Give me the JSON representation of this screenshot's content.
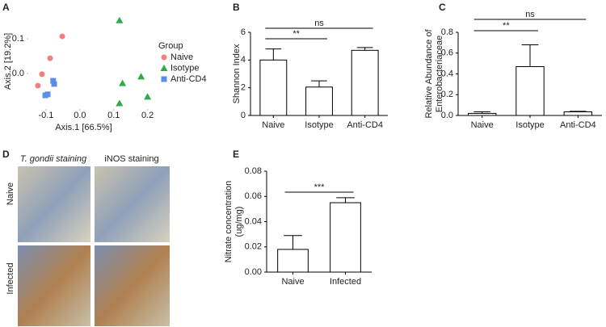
{
  "chart_data": [
    {
      "type": "scatter",
      "panel_label": "A",
      "xlabel": "Axis.1   [66.5%]",
      "ylabel": "Axis.2   [19.2%]",
      "legend_title": "Group",
      "xlim": [
        -0.15,
        0.22
      ],
      "ylim": [
        -0.1,
        0.17
      ],
      "xticks": [
        -0.1,
        {
          "value": 0,
          "label": "0.0"
        },
        0.1,
        0.2
      ],
      "yticks": [
        {
          "value": 0,
          "label": "0.0"
        },
        0.1
      ],
      "series": [
        {
          "name": "Naive",
          "color": "#f08080",
          "marker": "circle",
          "x": [
            -0.052,
            -0.088,
            -0.112,
            -0.124
          ],
          "y": [
            0.107,
            0.044,
            -0.002,
            -0.035
          ]
        },
        {
          "name": "Isotype",
          "color": "#2eaa4a",
          "marker": "triangle",
          "x": [
            0.117,
            0.126,
            0.181,
            0.2,
            0.117
          ],
          "y": [
            0.153,
            -0.028,
            -0.009,
            -0.067,
            -0.086
          ]
        },
        {
          "name": "Anti-CD4",
          "color": "#5b8ee6",
          "marker": "square",
          "x": [
            -0.079,
            -0.076,
            -0.102,
            -0.095
          ],
          "y": [
            -0.021,
            -0.03,
            -0.063,
            -0.06
          ]
        }
      ]
    },
    {
      "type": "bar",
      "panel_label": "B",
      "ylabel": [
        "Shannon Index"
      ],
      "categories": [
        "Naive",
        "Isotype",
        "Anti-CD4"
      ],
      "values": [
        4.0,
        2.05,
        4.7
      ],
      "errors": [
        0.8,
        0.45,
        0.2
      ],
      "ylim": [
        0,
        6
      ],
      "yticks": [
        0,
        2,
        4,
        6
      ],
      "significance": [
        {
          "label": "**",
          "between": [
            "Naive",
            "Isotype"
          ]
        },
        {
          "label": "ns",
          "between": [
            "Naive",
            "Anti-CD4"
          ]
        }
      ]
    },
    {
      "type": "bar",
      "panel_label": "C",
      "ylabel": [
        "Relative Abundance of",
        "Enterobacteriaceae"
      ],
      "categories": [
        "Naive",
        "Isotype",
        "Anti-CD4"
      ],
      "values": [
        0.02,
        0.47,
        0.035
      ],
      "errors": [
        0.015,
        0.21,
        0.005
      ],
      "ylim": [
        0,
        0.8
      ],
      "yticks": [
        {
          "value": 0,
          "label": "0.0"
        },
        0.2,
        0.4,
        0.6,
        0.8
      ],
      "significance": [
        {
          "label": "**",
          "between": [
            "Naive",
            "Isotype"
          ]
        },
        {
          "label": "ns",
          "between": [
            "Naive",
            "Anti-CD4"
          ]
        }
      ]
    },
    {
      "type": "bar",
      "panel_label": "E",
      "ylabel": [
        "Nitrate concentration",
        "(ug/mg)"
      ],
      "categories": [
        "Naive",
        "Infected"
      ],
      "values": [
        0.018,
        0.055
      ],
      "errors": [
        0.011,
        0.004
      ],
      "ylim": [
        0,
        0.08
      ],
      "yticks": [
        {
          "value": 0,
          "label": "0.00"
        },
        0.02,
        0.04,
        0.06,
        0.08
      ],
      "significance": [
        {
          "label": "***",
          "between": [
            "Naive",
            "Infected"
          ]
        }
      ]
    }
  ],
  "panel_d": {
    "panel_label": "D",
    "columns": [
      "T. gondii staining",
      "iNOS staining"
    ],
    "rows": [
      "Naive",
      "Infected"
    ]
  }
}
